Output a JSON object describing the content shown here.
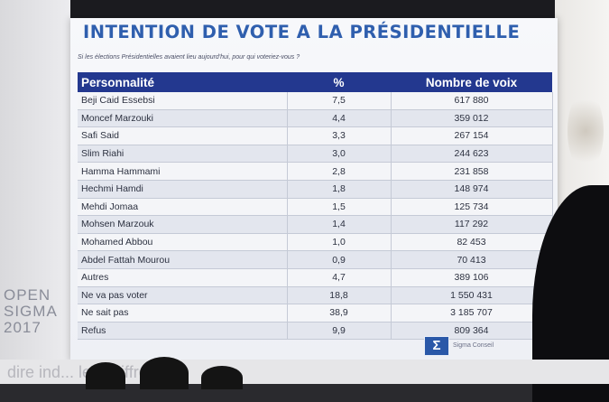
{
  "slide": {
    "title": "INTENTION DE VOTE A LA PRÉSIDENTIELLE",
    "question": "Si les élections Présidentielles avaient lieu aujourd'hui, pour qui voteriez-vous ?",
    "columns": {
      "name": "Personnalité",
      "pct": "%",
      "votes": "Nombre de voix"
    },
    "rows": [
      {
        "name": "Beji Caid Essebsi",
        "pct": "7,5",
        "votes": "617 880"
      },
      {
        "name": "Moncef Marzouki",
        "pct": "4,4",
        "votes": "359 012"
      },
      {
        "name": "Safi Said",
        "pct": "3,3",
        "votes": "267 154"
      },
      {
        "name": "Slim Riahi",
        "pct": "3,0",
        "votes": "244 623"
      },
      {
        "name": "Hamma Hammami",
        "pct": "2,8",
        "votes": "231 858"
      },
      {
        "name": "Hechmi Hamdi",
        "pct": "1,8",
        "votes": "148 974"
      },
      {
        "name": "Mehdi Jomaa",
        "pct": "1,5",
        "votes": "125 734"
      },
      {
        "name": "Mohsen Marzouk",
        "pct": "1,4",
        "votes": "117 292"
      },
      {
        "name": "Mohamed Abbou",
        "pct": "1,0",
        "votes": "82 453"
      },
      {
        "name": "Abdel Fattah Mourou",
        "pct": "0,9",
        "votes": "70 413"
      },
      {
        "name": "Autres",
        "pct": "4,7",
        "votes": "389 106"
      },
      {
        "name": "Ne va pas voter",
        "pct": "18,8",
        "votes": "1 550 431"
      },
      {
        "name": "Ne sait pas",
        "pct": "38,9",
        "votes": "3 185 707"
      },
      {
        "name": "Refus",
        "pct": "9,9",
        "votes": "809 364"
      }
    ],
    "logo_symbol": "Σ",
    "logo_caption": "Sigma Conseil"
  },
  "backdrop": {
    "event_lines": [
      "OPEN",
      "SIGMA",
      "2017"
    ],
    "caption": "dire ind... les chiffres"
  },
  "colors": {
    "title": "#2f5fae",
    "header": "#23388f",
    "row_even": "#e3e6ee",
    "row_odd": "#f4f5f8"
  }
}
